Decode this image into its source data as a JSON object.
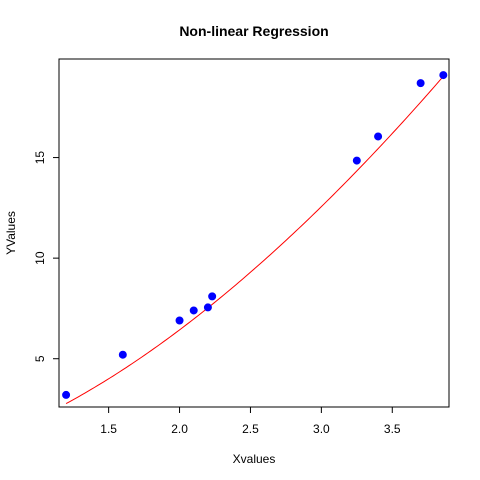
{
  "chart_data": {
    "type": "scatter",
    "title": "Non-linear Regression",
    "xlabel": "Xvalues",
    "ylabel": "YValues",
    "xlim": [
      1.15,
      3.9
    ],
    "ylim": [
      2.6,
      19.9
    ],
    "xticks": [
      1.5,
      2.0,
      2.5,
      3.0,
      3.5
    ],
    "xtick_labels": [
      "1.5",
      "2.0",
      "2.5",
      "3.0",
      "3.5"
    ],
    "yticks": [
      5,
      10,
      15
    ],
    "ytick_labels": [
      "5",
      "10",
      "15"
    ],
    "grid": false,
    "points": {
      "color": "#0000ff",
      "x": [
        1.2,
        1.6,
        2.0,
        2.1,
        2.2,
        2.23,
        3.25,
        3.4,
        3.7,
        3.86
      ],
      "y": [
        3.2,
        5.2,
        6.9,
        7.4,
        7.55,
        8.1,
        14.85,
        16.05,
        18.7,
        19.1
      ]
    },
    "fit_line": {
      "color": "#ff0000",
      "model": "y = 2.05 * x^1.65",
      "a": 2.05,
      "b": 1.65,
      "x_range": [
        1.2,
        3.86
      ]
    }
  }
}
